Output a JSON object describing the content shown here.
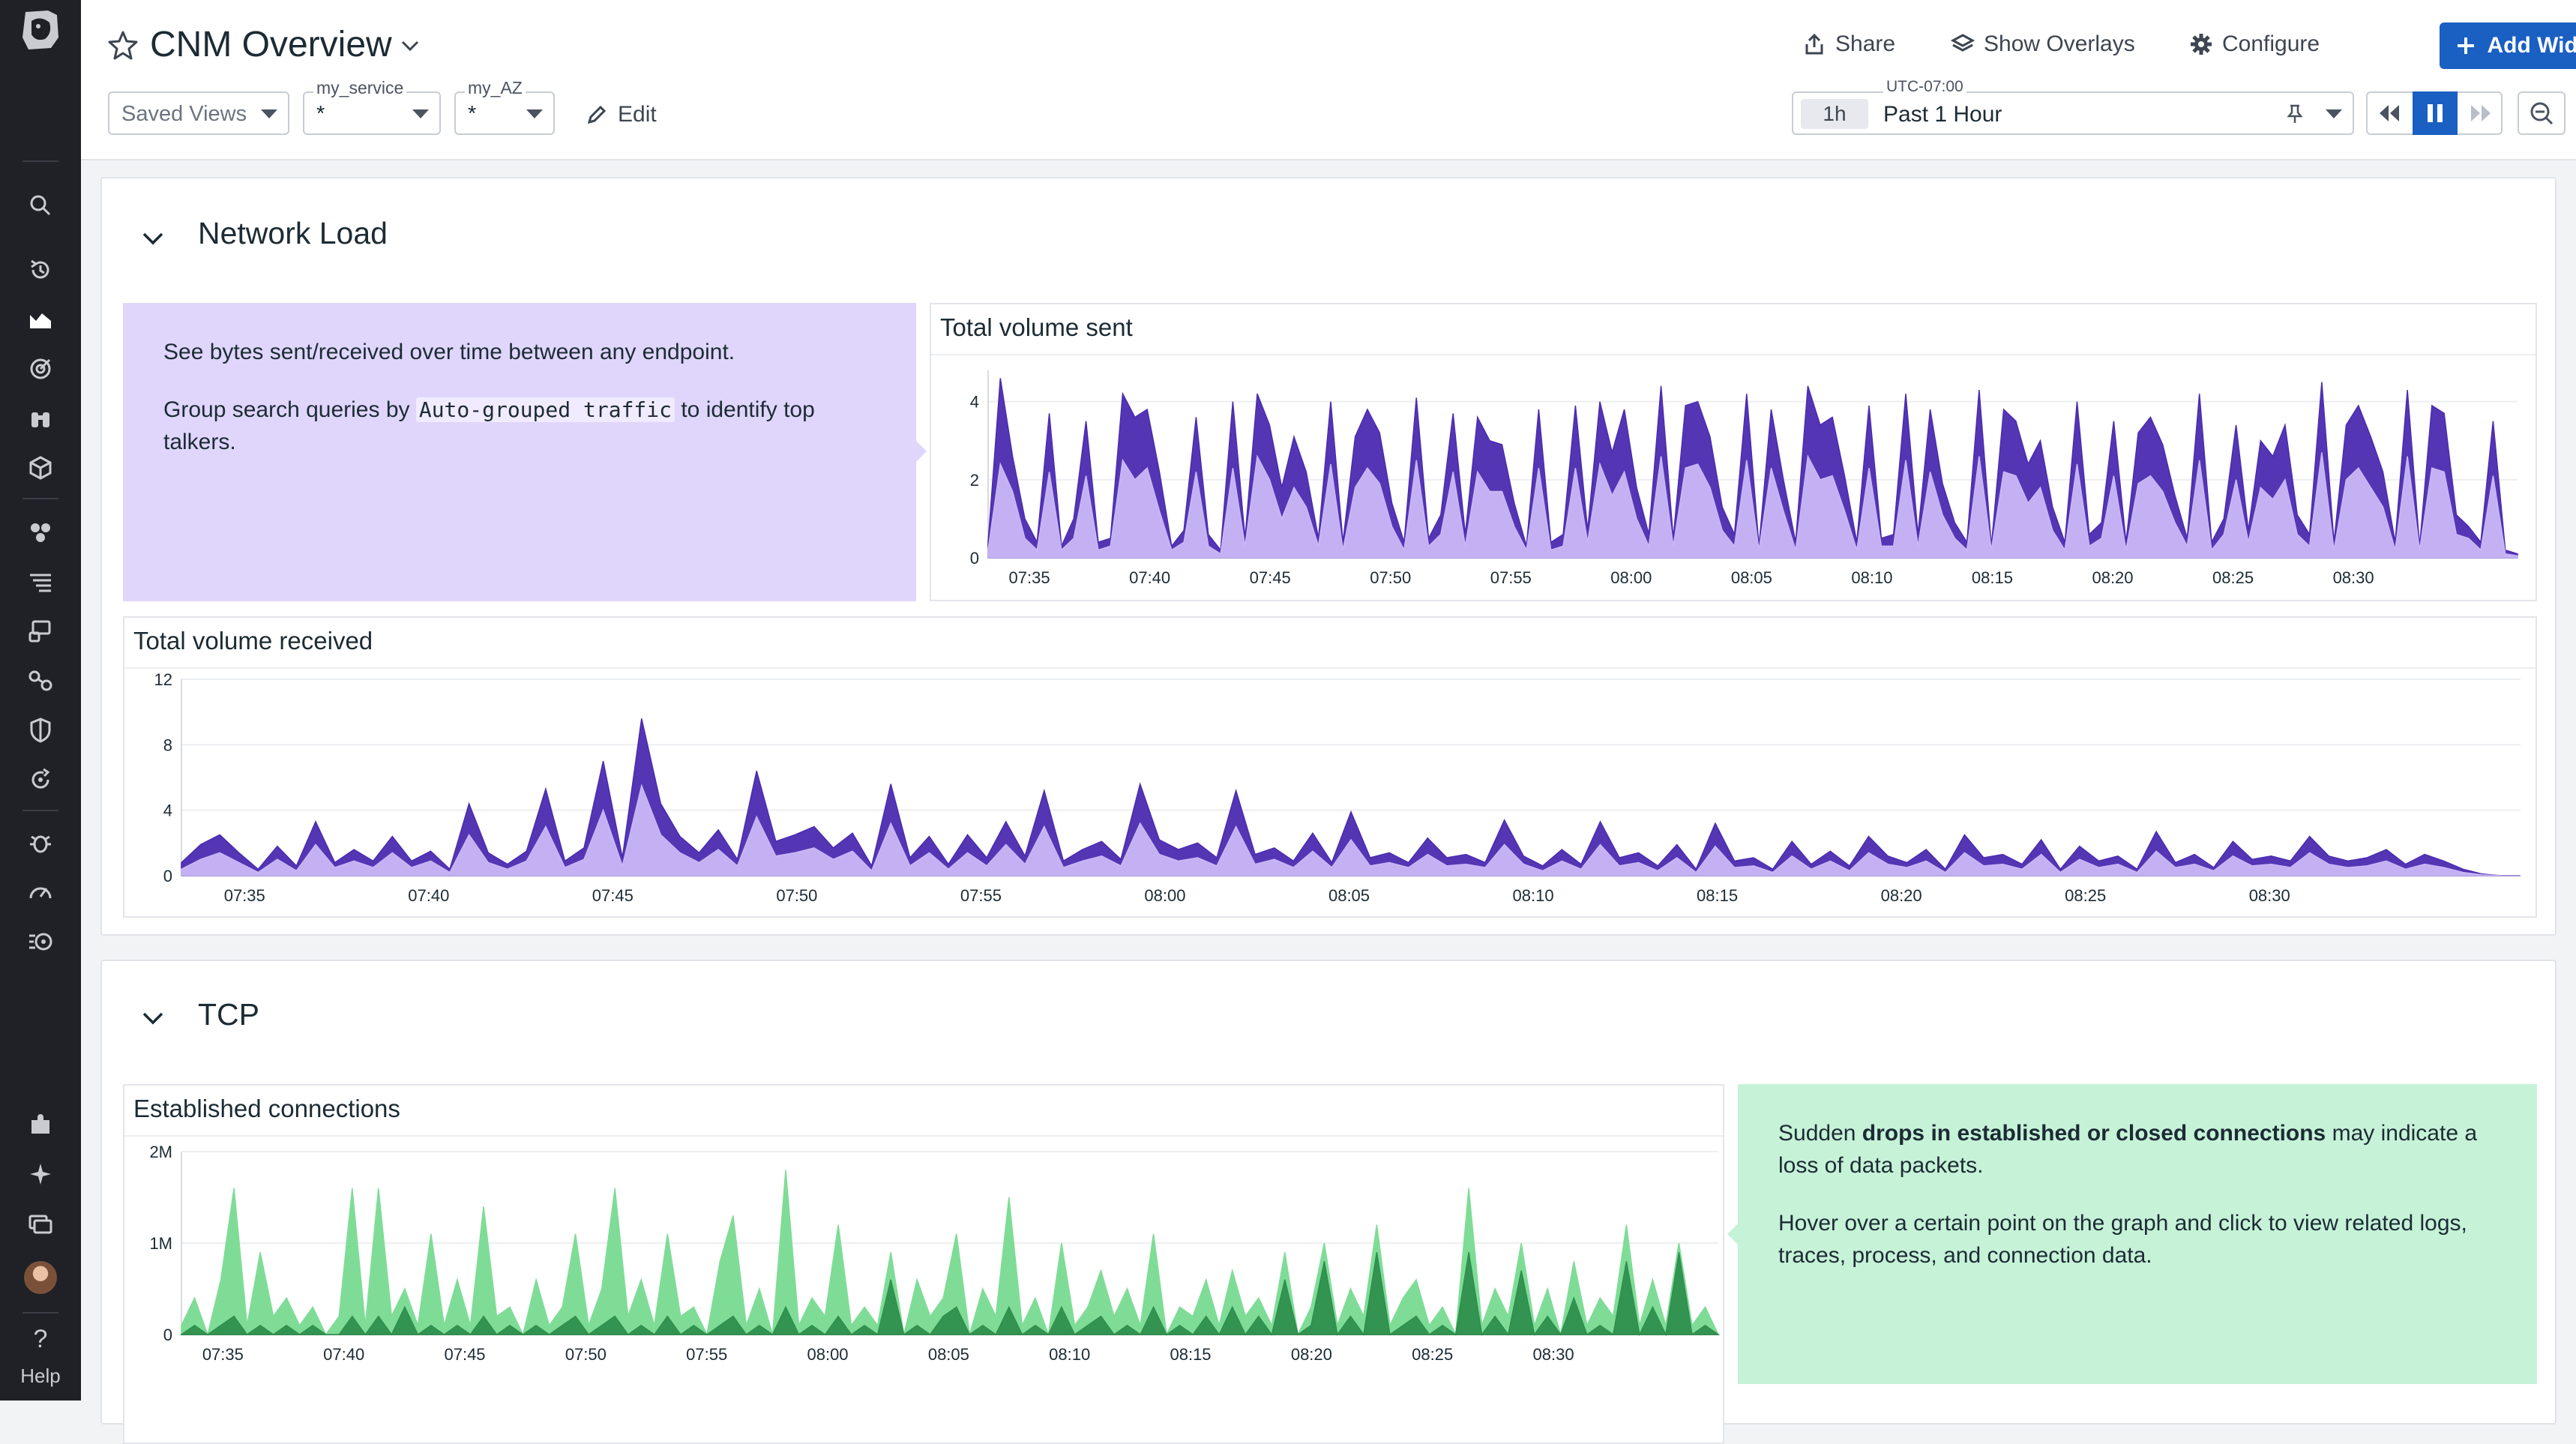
{
  "header": {
    "title": "CNM Overview",
    "share_label": "Share",
    "overlays_label": "Show Overlays",
    "configure_label": "Configure",
    "add_widgets_label": "Add Widgets",
    "saved_views": "Saved Views",
    "variables": [
      {
        "name": "my_service",
        "value": "*"
      },
      {
        "name": "my_AZ",
        "value": "*"
      }
    ],
    "edit_label": "Edit",
    "timezone": "UTC-07:00",
    "time_badge": "1h",
    "time_range": "Past 1 Hour"
  },
  "nav": {
    "help_label": "Help"
  },
  "colors": {
    "accent": "#1a5fc2",
    "purple_dark": "#4b2bb0",
    "purple_mid": "#8a67e0",
    "purple_light": "#c9b8f7",
    "green_dark": "#2f8f4d",
    "green_light": "#7fdc97",
    "note_purple": "#e0d6fc",
    "note_green": "#c6f2d8"
  },
  "sections": {
    "network_load": {
      "title": "Network Load",
      "note_line1": "See bytes sent/received over time between any endpoint.",
      "note_line2_pre": "Group search queries by ",
      "note_line2_code": "Auto-grouped traffic",
      "note_line2_post": " to identify top talkers."
    },
    "tcp": {
      "title": "TCP",
      "note_pre": "Sudden ",
      "note_bold": "drops in established or closed connections",
      "note_post": " may indicate a loss of data packets.",
      "note_line2": "Hover over a certain point on the graph and click to view related logs, traces, process, and connection data."
    }
  },
  "chart_data": [
    {
      "type": "area",
      "title": "Total volume sent",
      "ylim": [
        0,
        4.8
      ],
      "y_ticks": [
        "0",
        "2",
        "4"
      ],
      "x_ticks": [
        "07:35",
        "07:40",
        "07:45",
        "07:50",
        "07:55",
        "08:00",
        "08:05",
        "08:10",
        "08:15",
        "08:20",
        "08:25",
        "08:30"
      ],
      "series": [
        {
          "values": [
            0.4,
            4.6,
            2.6,
            1.0,
            0.4,
            3.7,
            0.3,
            1.0,
            3.5,
            0.4,
            0.5,
            4.2,
            3.6,
            3.8,
            2.2,
            0.3,
            0.7,
            3.6,
            0.6,
            0.2,
            4.0,
            0.5,
            4.2,
            3.4,
            1.8,
            3.1,
            2.2,
            0.5,
            4.0,
            0.4,
            3.1,
            3.8,
            3.2,
            1.4,
            0.4,
            4.1,
            0.5,
            1.1,
            3.7,
            0.6,
            3.6,
            3.0,
            2.9,
            1.4,
            0.3,
            3.8,
            0.4,
            0.6,
            3.9,
            0.7,
            4.0,
            2.7,
            3.8,
            1.8,
            0.6,
            4.4,
            0.5,
            3.9,
            4.0,
            3.1,
            1.3,
            0.6,
            4.2,
            0.3,
            3.8,
            2.0,
            0.4,
            4.4,
            3.4,
            3.6,
            2.1,
            0.4,
            3.9,
            0.5,
            0.6,
            4.2,
            0.6,
            3.8,
            1.9,
            0.9,
            0.4,
            4.3,
            0.3,
            3.8,
            3.5,
            2.4,
            3.0,
            1.3,
            0.4,
            4.0,
            0.6,
            0.9,
            3.5,
            0.4,
            3.2,
            3.6,
            2.9,
            1.6,
            0.5,
            4.2,
            0.4,
            1.0,
            3.4,
            0.7,
            3.0,
            2.6,
            3.4,
            1.1,
            0.6,
            4.5,
            0.4,
            3.4,
            3.9,
            3.1,
            2.2,
            0.4,
            4.3,
            0.3,
            3.9,
            3.7,
            1.1,
            0.8,
            0.4,
            3.5,
            0.2,
            0.1
          ],
          "name": "",
          "color_key": "purple_dark"
        },
        {
          "values": [
            0.2,
            2.4,
            1.7,
            0.5,
            0.2,
            2.2,
            0.2,
            0.5,
            2.1,
            0.2,
            0.3,
            2.5,
            2.0,
            2.3,
            1.2,
            0.2,
            0.4,
            2.2,
            0.3,
            0.1,
            2.3,
            0.3,
            2.6,
            2.0,
            1.0,
            1.8,
            1.3,
            0.3,
            2.4,
            0.2,
            1.8,
            2.3,
            1.9,
            0.8,
            0.2,
            2.5,
            0.3,
            0.6,
            2.2,
            0.3,
            2.2,
            1.7,
            1.7,
            0.8,
            0.2,
            2.3,
            0.2,
            0.3,
            2.3,
            0.4,
            2.4,
            1.6,
            2.2,
            1.0,
            0.3,
            2.6,
            0.3,
            2.3,
            2.4,
            1.8,
            0.7,
            0.3,
            2.5,
            0.2,
            2.3,
            1.2,
            0.2,
            2.6,
            2.0,
            2.1,
            1.2,
            0.2,
            2.3,
            0.3,
            0.3,
            2.5,
            0.3,
            2.2,
            1.1,
            0.5,
            0.2,
            2.6,
            0.2,
            2.2,
            2.1,
            1.4,
            1.8,
            0.7,
            0.2,
            2.4,
            0.3,
            0.5,
            2.1,
            0.2,
            1.9,
            2.1,
            1.7,
            0.9,
            0.3,
            2.5,
            0.2,
            0.6,
            2.0,
            0.4,
            1.8,
            1.5,
            2.0,
            0.6,
            0.3,
            2.7,
            0.2,
            2.0,
            2.3,
            1.8,
            1.3,
            0.2,
            2.6,
            0.2,
            2.3,
            2.2,
            0.6,
            0.5,
            0.2,
            2.1,
            0.1,
            0.05
          ],
          "name": "",
          "color_key": "purple_light"
        }
      ]
    },
    {
      "type": "area",
      "title": "Total volume received",
      "ylim": [
        0,
        12
      ],
      "y_ticks": [
        "0",
        "4",
        "8",
        "12"
      ],
      "x_ticks": [
        "07:35",
        "07:40",
        "07:45",
        "07:50",
        "07:55",
        "08:00",
        "08:05",
        "08:10",
        "08:15",
        "08:20",
        "08:25",
        "08:30"
      ],
      "series": [
        {
          "values": [
            0.8,
            1.9,
            2.5,
            1.4,
            0.4,
            1.8,
            0.6,
            3.3,
            0.8,
            1.6,
            0.9,
            2.4,
            0.9,
            1.5,
            0.4,
            4.4,
            1.4,
            0.7,
            1.5,
            5.3,
            0.9,
            1.7,
            7.0,
            1.1,
            9.6,
            4.4,
            2.4,
            1.4,
            2.8,
            1.0,
            6.4,
            2.1,
            2.5,
            3.0,
            1.7,
            2.6,
            0.6,
            5.6,
            1.1,
            2.4,
            0.7,
            2.5,
            1.1,
            3.3,
            1.2,
            5.2,
            0.9,
            1.6,
            2.1,
            1.0,
            5.6,
            2.2,
            1.6,
            2.0,
            1.1,
            5.2,
            1.3,
            1.7,
            0.9,
            2.6,
            0.8,
            3.9,
            1.1,
            1.4,
            0.8,
            2.3,
            1.1,
            1.3,
            0.8,
            3.4,
            1.2,
            0.6,
            1.6,
            0.7,
            3.3,
            1.1,
            1.4,
            0.6,
            1.9,
            0.4,
            3.2,
            0.9,
            1.1,
            0.4,
            2.1,
            0.7,
            1.5,
            0.6,
            2.4,
            1.2,
            0.8,
            1.6,
            0.4,
            2.5,
            1.1,
            1.3,
            0.7,
            2.2,
            0.4,
            1.8,
            0.9,
            1.2,
            0.4,
            2.7,
            0.8,
            1.3,
            0.5,
            2.1,
            1.0,
            1.2,
            0.9,
            2.4,
            1.2,
            0.9,
            1.1,
            1.6,
            0.7,
            1.3,
            0.9,
            0.4,
            0.1,
            0.0,
            0.0
          ],
          "name": "",
          "color_key": "purple_dark"
        },
        {
          "values": [
            0.4,
            1.0,
            1.4,
            0.8,
            0.2,
            1.0,
            0.3,
            1.9,
            0.5,
            0.9,
            0.5,
            1.4,
            0.5,
            0.9,
            0.2,
            2.5,
            0.8,
            0.4,
            0.9,
            3.0,
            0.5,
            1.0,
            4.0,
            0.6,
            5.5,
            2.5,
            1.4,
            0.8,
            1.6,
            0.6,
            3.6,
            1.2,
            1.4,
            1.7,
            1.0,
            1.5,
            0.3,
            3.2,
            0.6,
            1.4,
            0.4,
            1.4,
            0.6,
            1.9,
            0.7,
            3.0,
            0.5,
            0.9,
            1.2,
            0.6,
            3.2,
            1.3,
            0.9,
            1.1,
            0.6,
            3.0,
            0.7,
            1.0,
            0.5,
            1.5,
            0.5,
            2.2,
            0.6,
            0.8,
            0.5,
            1.3,
            0.6,
            0.7,
            0.5,
            1.9,
            0.7,
            0.3,
            0.9,
            0.4,
            1.9,
            0.6,
            0.8,
            0.3,
            1.1,
            0.2,
            1.8,
            0.5,
            0.6,
            0.2,
            1.2,
            0.4,
            0.9,
            0.3,
            1.4,
            0.7,
            0.5,
            0.9,
            0.2,
            1.4,
            0.6,
            0.7,
            0.4,
            1.3,
            0.2,
            1.0,
            0.5,
            0.7,
            0.2,
            1.5,
            0.5,
            0.7,
            0.3,
            1.2,
            0.6,
            0.7,
            0.5,
            1.4,
            0.7,
            0.5,
            0.6,
            0.9,
            0.4,
            0.7,
            0.5,
            0.2,
            0.05,
            0.0,
            0.0
          ],
          "name": "",
          "color_key": "purple_light"
        }
      ]
    },
    {
      "type": "area",
      "title": "Established connections",
      "ylim": [
        0,
        2000000
      ],
      "y_ticks": [
        "0",
        "1M",
        "2M"
      ],
      "x_ticks": [
        "07:35",
        "07:40",
        "07:45",
        "07:50",
        "07:55",
        "08:00",
        "08:05",
        "08:10",
        "08:15",
        "08:20",
        "08:25",
        "08:30"
      ],
      "series": [
        {
          "values": [
            0.1,
            0.4,
            0.0,
            0.6,
            1.6,
            0.1,
            0.9,
            0.2,
            0.4,
            0.1,
            0.3,
            0.0,
            0.2,
            1.6,
            0.1,
            1.6,
            0.2,
            0.5,
            0.1,
            1.1,
            0.1,
            0.6,
            0.1,
            1.4,
            0.2,
            0.3,
            0.0,
            0.6,
            0.1,
            0.3,
            1.1,
            0.1,
            0.5,
            1.6,
            0.2,
            0.6,
            0.1,
            1.1,
            0.2,
            0.3,
            0.0,
            0.8,
            1.3,
            0.1,
            0.5,
            0.0,
            1.8,
            0.1,
            0.4,
            0.2,
            1.2,
            0.1,
            0.3,
            0.1,
            0.9,
            0.0,
            0.6,
            0.2,
            0.4,
            1.1,
            0.0,
            0.5,
            0.2,
            1.5,
            0.1,
            0.4,
            0.0,
            1.0,
            0.1,
            0.3,
            0.7,
            0.2,
            0.5,
            0.1,
            1.1,
            0.0,
            0.3,
            0.2,
            0.6,
            0.1,
            0.7,
            0.2,
            0.4,
            0.1,
            0.9,
            0.0,
            0.3,
            1.0,
            0.1,
            0.5,
            0.2,
            1.2,
            0.1,
            0.4,
            0.6,
            0.1,
            0.3,
            0.0,
            1.6,
            0.1,
            0.5,
            0.2,
            1.0,
            0.1,
            0.5,
            0.0,
            0.8,
            0.1,
            0.4,
            0.2,
            1.2,
            0.1,
            0.6,
            0.1,
            1.0,
            0.1,
            0.3,
            0.0
          ],
          "name": "",
          "color_key": "green_light"
        },
        {
          "values": [
            0.0,
            0.1,
            0.0,
            0.1,
            0.2,
            0.0,
            0.1,
            0.0,
            0.1,
            0.0,
            0.1,
            0.0,
            0.0,
            0.2,
            0.0,
            0.2,
            0.0,
            0.3,
            0.0,
            0.1,
            0.0,
            0.1,
            0.0,
            0.2,
            0.0,
            0.1,
            0.0,
            0.1,
            0.0,
            0.1,
            0.2,
            0.0,
            0.1,
            0.2,
            0.0,
            0.1,
            0.0,
            0.2,
            0.0,
            0.1,
            0.0,
            0.1,
            0.2,
            0.0,
            0.1,
            0.0,
            0.3,
            0.0,
            0.1,
            0.0,
            0.2,
            0.0,
            0.1,
            0.0,
            0.6,
            0.0,
            0.1,
            0.0,
            0.2,
            0.3,
            0.0,
            0.1,
            0.0,
            0.3,
            0.0,
            0.1,
            0.0,
            0.3,
            0.0,
            0.1,
            0.2,
            0.0,
            0.1,
            0.0,
            0.3,
            0.0,
            0.1,
            0.0,
            0.2,
            0.0,
            0.3,
            0.0,
            0.2,
            0.0,
            0.6,
            0.0,
            0.1,
            0.8,
            0.0,
            0.2,
            0.0,
            0.9,
            0.0,
            0.1,
            0.2,
            0.0,
            0.1,
            0.0,
            0.9,
            0.0,
            0.2,
            0.0,
            0.7,
            0.0,
            0.2,
            0.0,
            0.4,
            0.0,
            0.1,
            0.0,
            0.8,
            0.0,
            0.3,
            0.0,
            0.9,
            0.0,
            0.1,
            0.0
          ],
          "name": "",
          "color_key": "green_dark"
        }
      ]
    }
  ]
}
